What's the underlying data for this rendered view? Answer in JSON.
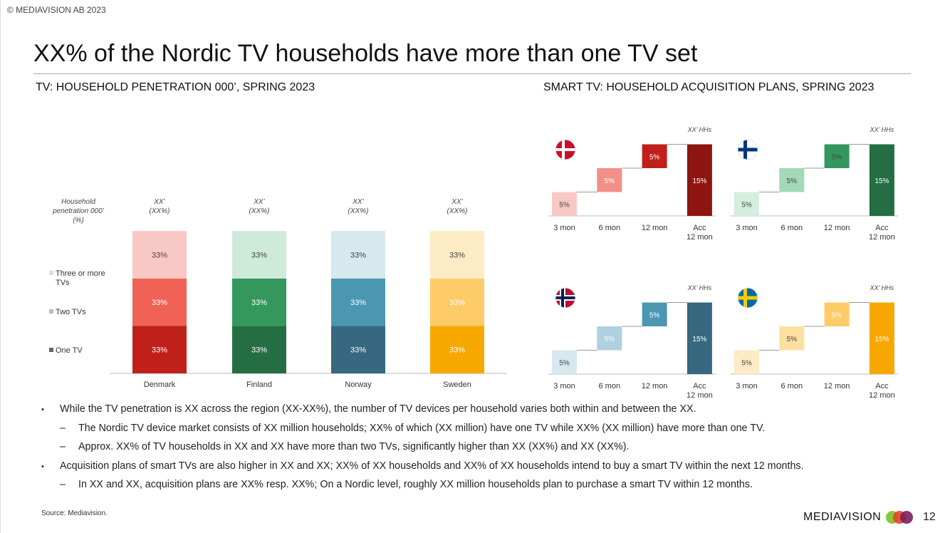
{
  "copyright": "© MEDIAVISION AB 2023",
  "title": "XX% of the Nordic TV households have more than one TV set",
  "left_heading": "TV: HOUSEHOLD PENETRATION 000’, SPRING 2023",
  "right_heading": "SMART TV: HOUSEHOLD ACQUISITION PLANS, SPRING 2023",
  "bullets": [
    {
      "level": 1,
      "marker": "•",
      "text": "While the TV penetration is XX across the region (XX-XX%), the number of TV devices per household varies both within and between the XX."
    },
    {
      "level": 2,
      "marker": "–",
      "text": "The Nordic TV device market consists of XX million households; XX% of which (XX million) have one TV while XX% (XX million) have more than one TV."
    },
    {
      "level": 2,
      "marker": "–",
      "text": "Approx. XX% of TV households in XX and XX have more than two TVs, significantly higher than XX (XX%) and XX (XX%)."
    },
    {
      "level": 1,
      "marker": "•",
      "text": "Acquisition plans of smart TVs are also higher in XX and XX; XX% of XX households and XX% of XX households intend to buy a smart TV within the next 12 months."
    },
    {
      "level": 2,
      "marker": "–",
      "text": "In XX and XX, acquisition plans are XX% resp. XX%; On a Nordic level, roughly XX million households plan to purchase a smart TV within 12 months."
    }
  ],
  "source": "Source: Mediavision.",
  "logo_text": "MEDIAVISION",
  "page_number": "12",
  "chart_data": [
    {
      "type": "bar",
      "stacked": true,
      "header_label": [
        "Household",
        "penetration 000’",
        "(%)"
      ],
      "categories": [
        "Denmark",
        "Finland",
        "Norway",
        "Sweden"
      ],
      "top_labels": [
        [
          "XX’",
          "(XX%)"
        ],
        [
          "XX’",
          "(XX%)"
        ],
        [
          "XX’",
          "(XX%)"
        ],
        [
          "XX’",
          "(XX%)"
        ]
      ],
      "legend": [
        "Three or more TVs",
        "Two TVs",
        "One TV"
      ],
      "series": [
        {
          "name": "One TV",
          "values": [
            33,
            33,
            33,
            33
          ],
          "labels": [
            "33%",
            "33%",
            "33%",
            "33%"
          ]
        },
        {
          "name": "Two TVs",
          "values": [
            33,
            33,
            33,
            33
          ],
          "labels": [
            "33%",
            "33%",
            "33%",
            "33%"
          ]
        },
        {
          "name": "Three or more TVs",
          "values": [
            33,
            33,
            33,
            33
          ],
          "labels": [
            "33%",
            "33%",
            "33%",
            "33%"
          ]
        }
      ],
      "colors": [
        [
          "#c0201a",
          "#ef6255",
          "#f8c8c4"
        ],
        [
          "#256e44",
          "#34975c",
          "#cdebd8"
        ],
        [
          "#36687f",
          "#4b97b1",
          "#d7e8ef"
        ],
        [
          "#f7a800",
          "#fdcb68",
          "#fdebc6"
        ]
      ],
      "label_colors": [
        "#ffffff",
        "#ffffff",
        "#444444"
      ]
    },
    {
      "type": "bar",
      "variant": "waterfall",
      "panels": [
        {
          "country": "Denmark",
          "flag": "denmark-flag",
          "unit_label": "XX’ HHs",
          "categories": [
            "3 mon",
            "6 mon",
            "12 mon",
            "Acc\n12 mon"
          ],
          "values": [
            5,
            5,
            5,
            15
          ],
          "labels": [
            "5%",
            "5%",
            "5%",
            "15%"
          ],
          "colors": [
            "#f8c8c4",
            "#f28f88",
            "#c0201a",
            "#8e1510"
          ],
          "label_colors": [
            "#444444",
            "#ffffff",
            "#ffffff",
            "#ffffff"
          ]
        },
        {
          "country": "Finland",
          "flag": "finland-flag",
          "unit_label": "XX’ HHs",
          "categories": [
            "3 mon",
            "6 mon",
            "12 mon",
            "Acc\n12 mon"
          ],
          "values": [
            5,
            5,
            5,
            15
          ],
          "labels": [
            "5%",
            "5%",
            "5%",
            "15%"
          ],
          "colors": [
            "#d3eedd",
            "#a3d9b6",
            "#34975c",
            "#256e44"
          ],
          "label_colors": [
            "#444444",
            "#444444",
            "#444444",
            "#ffffff"
          ]
        },
        {
          "country": "Norway",
          "flag": "norway-flag",
          "unit_label": "XX’ HHs",
          "categories": [
            "3 mon",
            "6 mon",
            "12 mon",
            "Acc\n12 mon"
          ],
          "values": [
            5,
            5,
            5,
            15
          ],
          "labels": [
            "5%",
            "5%",
            "5%",
            "15%"
          ],
          "colors": [
            "#d7e8ef",
            "#afd0de",
            "#4b97b1",
            "#36687f"
          ],
          "label_colors": [
            "#444444",
            "#ffffff",
            "#ffffff",
            "#ffffff"
          ]
        },
        {
          "country": "Sweden",
          "flag": "sweden-flag",
          "unit_label": "XX’ HHs",
          "categories": [
            "3 mon",
            "6 mon",
            "12 mon",
            "Acc\n12 mon"
          ],
          "values": [
            5,
            5,
            5,
            15
          ],
          "labels": [
            "5%",
            "5%",
            "5%",
            "15%"
          ],
          "colors": [
            "#fdebc6",
            "#fde0a0",
            "#fdcb68",
            "#f7a800"
          ],
          "label_colors": [
            "#444444",
            "#444444",
            "#ffffff",
            "#ffffff"
          ]
        }
      ]
    }
  ]
}
